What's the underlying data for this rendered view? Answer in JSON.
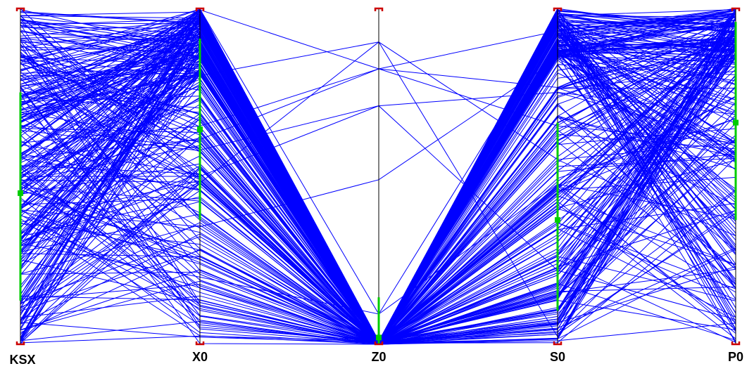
{
  "chart_data": {
    "type": "parallel-coordinates",
    "title": "",
    "axes": [
      "KSX",
      "X0",
      "Z0",
      "S0",
      "P0"
    ],
    "value_range": [
      0,
      1
    ],
    "line_color": "#0000ff",
    "highlight_color": "#00cc00",
    "axis_color": "#000000",
    "endpoint_color": "#cc0000",
    "highlight_ranges": {
      "KSX": [
        0.13,
        0.75
      ],
      "X0": [
        0.37,
        0.91
      ],
      "Z0": [
        0,
        0.14
      ],
      "S0": [
        0.1,
        0.66
      ],
      "P0": [
        0.37,
        0.96
      ]
    },
    "highlight_markers": {
      "KSX": 0.45,
      "X0": 0.64,
      "Z0": 0.02,
      "S0": 0.37,
      "P0": 0.66
    },
    "z0_nonzero_values": [
      0.09,
      0.49,
      0.71,
      0.82,
      0.9
    ],
    "sample_count": 300
  }
}
